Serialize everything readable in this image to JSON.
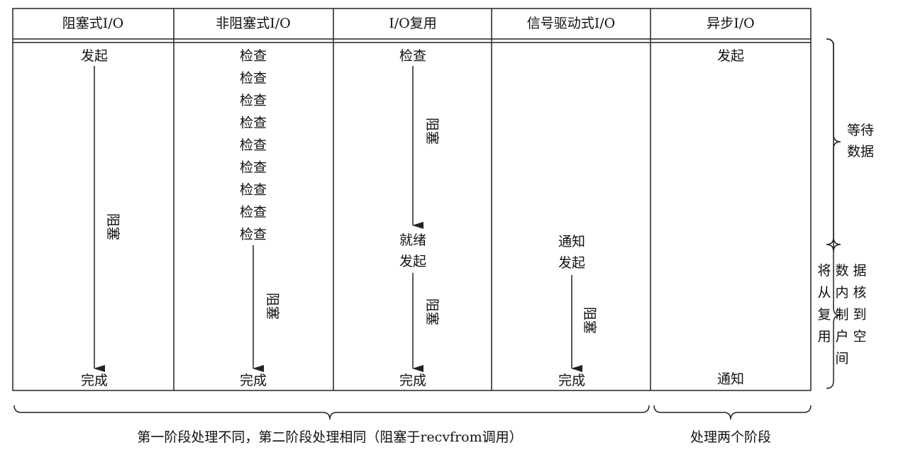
{
  "header": [
    "阻塞式I/O",
    "非阻塞式I/O",
    "I/O复用",
    "信号驱动式I/O",
    "异步I/O"
  ],
  "blocking": {
    "start": "发起",
    "block": "阻塞",
    "end": "完成"
  },
  "nonblocking": {
    "checks": [
      "检查",
      "检查",
      "检查",
      "检查",
      "检查",
      "检查",
      "检查",
      "检查",
      "检查"
    ],
    "block": "阻塞",
    "end": "完成"
  },
  "multiplexing": {
    "check": "检查",
    "block1": "阻塞",
    "ready": "就绪",
    "start": "发起",
    "block2": "阻塞",
    "end": "完成"
  },
  "signal": {
    "notify": "通知",
    "start": "发起",
    "block": "阻塞",
    "end": "完成"
  },
  "async": {
    "start": "发起",
    "notify": "通知"
  },
  "side": {
    "wait": [
      "等待",
      "数据"
    ],
    "copy": [
      "将数据",
      "从内核",
      "复制到",
      "用户空",
      "间"
    ]
  },
  "footer": [
    "第一阶段处理不同，第二阶段处理相同（阻塞于recvfrom调用）",
    "处理两个阶段"
  ]
}
